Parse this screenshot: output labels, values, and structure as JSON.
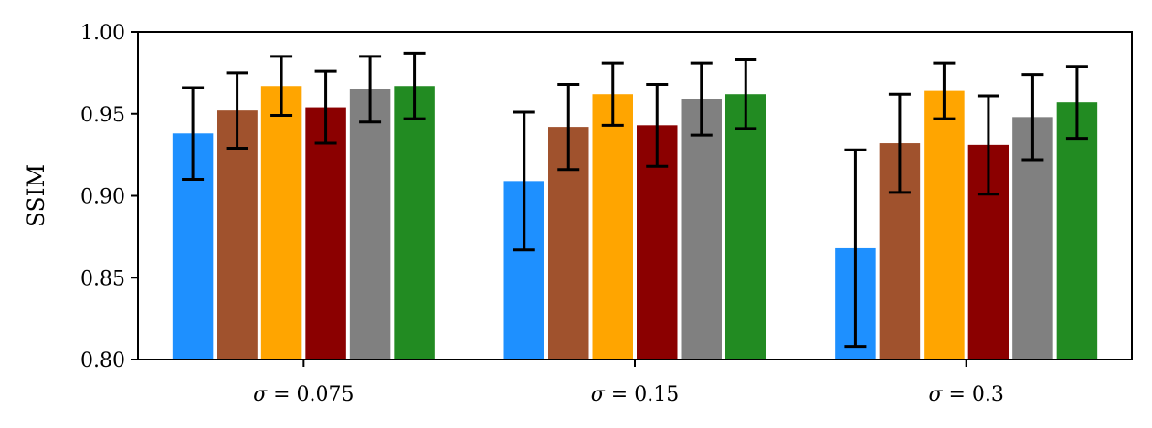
{
  "chart_data": {
    "type": "bar",
    "title": "",
    "xlabel": "",
    "ylabel": "SSIM",
    "ylim": [
      0.8,
      1.0
    ],
    "yticks": [
      "0.80",
      "0.85",
      "0.90",
      "0.95",
      "1.00"
    ],
    "grid": false,
    "categories": [
      "σ = 0.075",
      "σ = 0.15",
      "σ = 0.3"
    ],
    "series": [
      {
        "color": "#1e90ff",
        "values": [
          0.938,
          0.909,
          0.868
        ],
        "errors": [
          0.028,
          0.042,
          0.06
        ]
      },
      {
        "color": "#a0522d",
        "values": [
          0.952,
          0.942,
          0.932
        ],
        "errors": [
          0.023,
          0.026,
          0.03
        ]
      },
      {
        "color": "#ffa500",
        "values": [
          0.967,
          0.962,
          0.964
        ],
        "errors": [
          0.018,
          0.019,
          0.017
        ]
      },
      {
        "color": "#8b0000",
        "values": [
          0.954,
          0.943,
          0.931
        ],
        "errors": [
          0.022,
          0.025,
          0.03
        ]
      },
      {
        "color": "#808080",
        "values": [
          0.965,
          0.959,
          0.948
        ],
        "errors": [
          0.02,
          0.022,
          0.026
        ]
      },
      {
        "color": "#228b22",
        "values": [
          0.967,
          0.962,
          0.957
        ],
        "errors": [
          0.02,
          0.021,
          0.022
        ]
      }
    ]
  }
}
